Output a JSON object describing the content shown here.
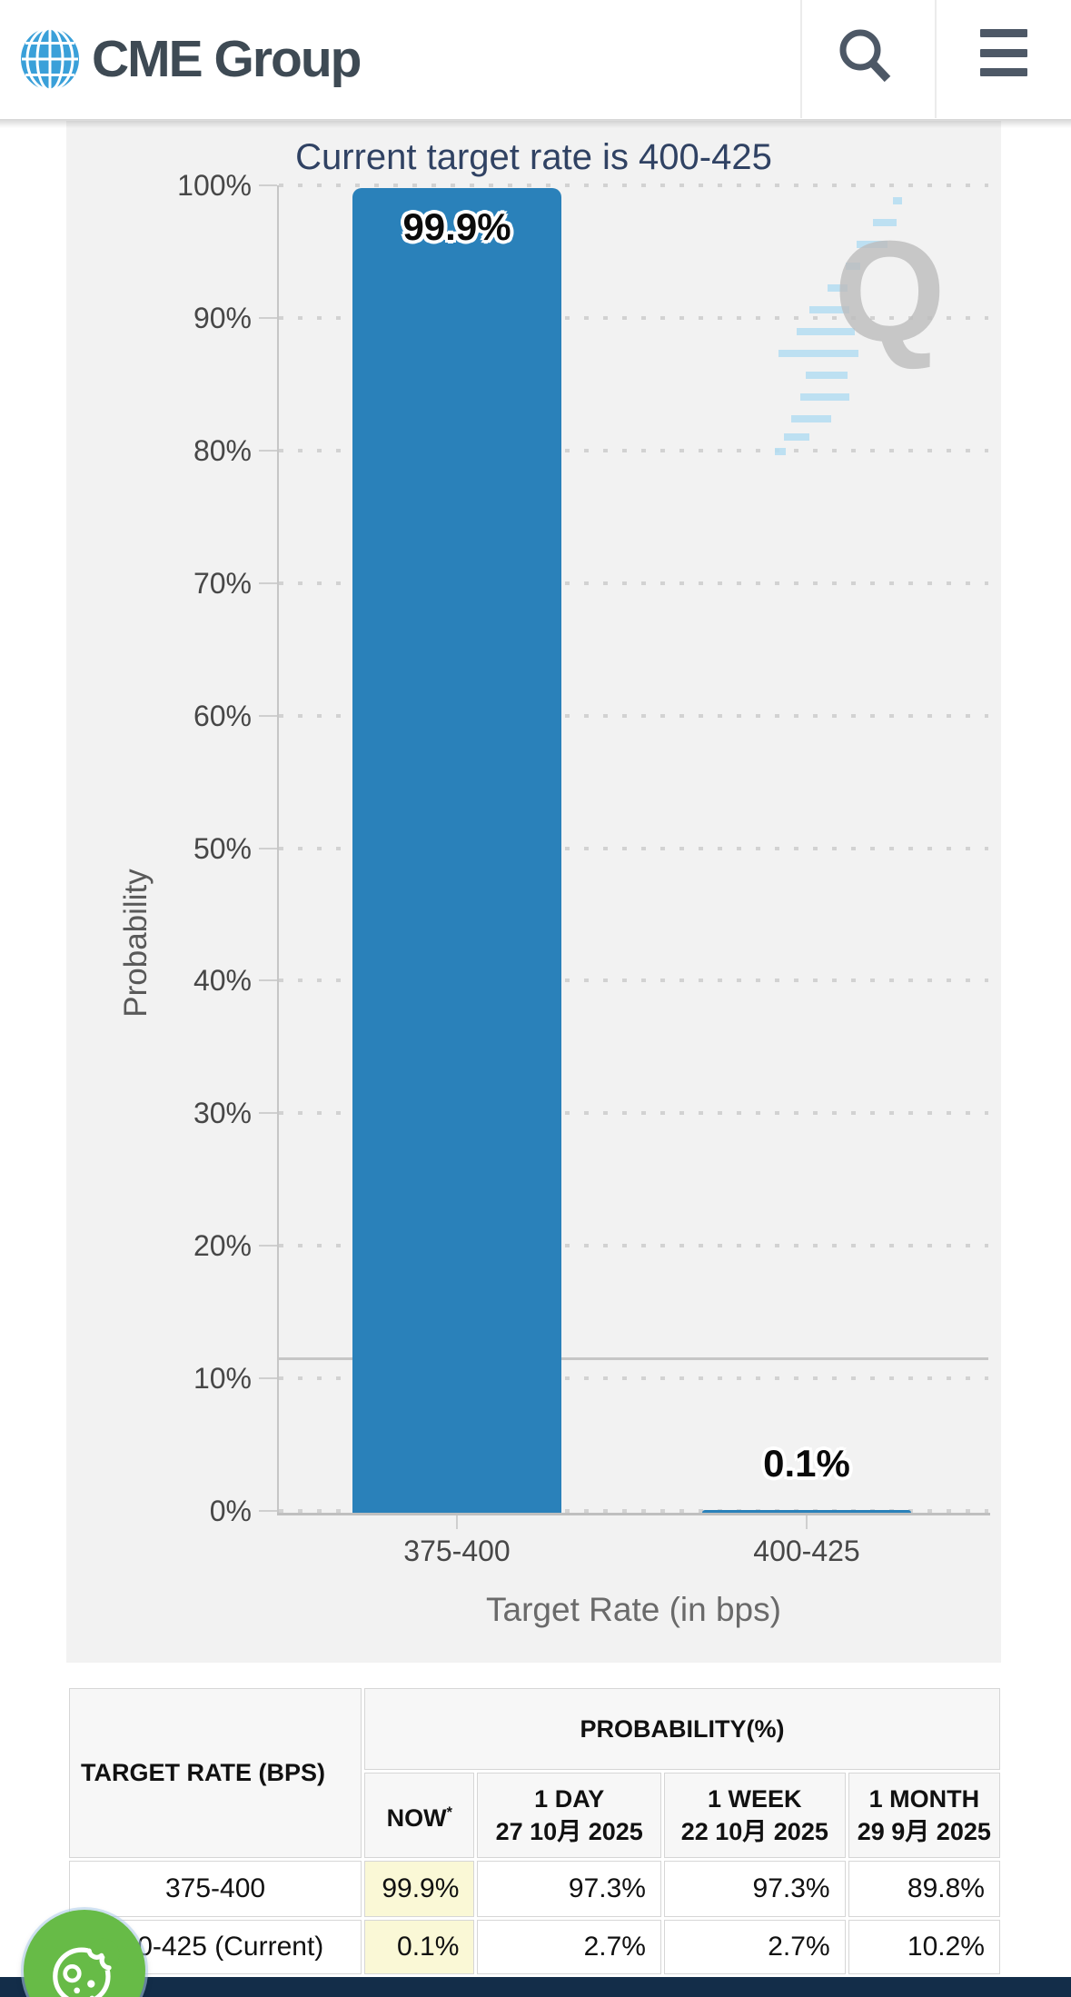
{
  "header": {
    "brand": "CME Group",
    "search_icon": "magnifier",
    "menu_icon": "hamburger"
  },
  "chart": {
    "title": "Current target rate is 400-425",
    "ylabel": "Probability",
    "xlabel": "Target Rate (in bps)",
    "watermark_letter": "Q",
    "y_ticks": [
      "100%",
      "90%",
      "80%",
      "70%",
      "60%",
      "50%",
      "40%",
      "30%",
      "20%",
      "10%",
      "0%"
    ]
  },
  "chart_data": {
    "type": "bar",
    "title": "Current target rate is 400-425",
    "categories": [
      "375-400",
      "400-425"
    ],
    "values": [
      99.9,
      0.1
    ],
    "bar_labels": [
      "99.9%",
      "0.1%"
    ],
    "xlabel": "Target Rate (in bps)",
    "ylabel": "Probability",
    "ylim": [
      0,
      100
    ],
    "y_tick_step": 10,
    "grid": "dotted-horizontal",
    "reference_line_pct": 11.5,
    "bar_color": "#2a81ba"
  },
  "table": {
    "corner_header": "TARGET RATE (BPS)",
    "group_header": "PROBABILITY(%)",
    "columns": [
      {
        "label": "NOW",
        "sup": "*",
        "date": ""
      },
      {
        "label": "1 DAY",
        "date": "27 10月 2025"
      },
      {
        "label": "1 WEEK",
        "date": "22 10月 2025"
      },
      {
        "label": "1 MONTH",
        "date": "29 9月 2025"
      }
    ],
    "rows": [
      {
        "rate": "375-400",
        "values": [
          "99.9%",
          "97.3%",
          "97.3%",
          "89.8%"
        ]
      },
      {
        "rate": "400-425 (Current)",
        "values": [
          "0.1%",
          "2.7%",
          "2.7%",
          "10.2%"
        ]
      }
    ]
  },
  "colors": {
    "bar_blue": "#2a81ba",
    "title_navy": "#304263",
    "highlight_yellow": "#faf8d6",
    "footer_navy": "#132d49",
    "widget_green": "#67bb47",
    "panel_gray": "#f2f2f2",
    "brand_slate": "#3e4a54"
  }
}
